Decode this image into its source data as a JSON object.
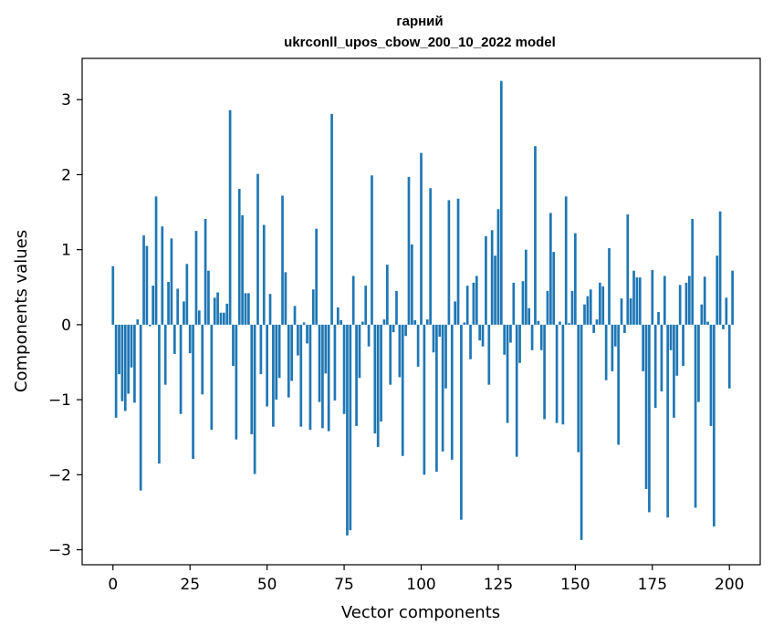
{
  "chart_data": {
    "type": "bar",
    "title": "гарний",
    "subtitle": "ukrconll_upos_cbow_200_10_2022 model",
    "xlabel": "Vector components",
    "ylabel": "Components values",
    "xlim": [
      -10,
      210
    ],
    "ylim": [
      -3.2,
      3.55
    ],
    "xticks": [
      0,
      25,
      50,
      75,
      100,
      125,
      150,
      175,
      200
    ],
    "yticks": [
      -3,
      -2,
      -1,
      0,
      1,
      2,
      3
    ],
    "xtick_labels": [
      "0",
      "25",
      "50",
      "75",
      "100",
      "125",
      "150",
      "175",
      "200"
    ],
    "ytick_labels": [
      "−3",
      "−2",
      "−1",
      "0",
      "1",
      "2",
      "3"
    ],
    "grid": false,
    "bar_color": "#1f77b4",
    "values": [
      0.78,
      -1.24,
      -0.66,
      -1.02,
      -1.15,
      -0.92,
      -0.57,
      -1.04,
      0.07,
      -2.21,
      1.19,
      1.05,
      -0.02,
      0.52,
      1.71,
      -1.85,
      1.31,
      -0.8,
      0.57,
      1.15,
      -0.39,
      0.48,
      -1.19,
      0.31,
      0.81,
      -0.38,
      -1.79,
      1.25,
      0.19,
      -0.93,
      1.41,
      0.72,
      -1.4,
      0.36,
      0.43,
      0.16,
      0.16,
      0.28,
      2.86,
      -0.55,
      -1.53,
      1.81,
      1.46,
      0.42,
      0.42,
      -1.46,
      -1.99,
      2.01,
      -0.66,
      1.33,
      -1.09,
      0.41,
      -1.36,
      -1.0,
      -0.71,
      1.72,
      0.7,
      -0.97,
      -0.75,
      0.25,
      -0.41,
      -1.36,
      0.03,
      -0.25,
      -1.4,
      0.47,
      1.28,
      -1.03,
      -1.38,
      -0.65,
      -1.42,
      2.81,
      -1.01,
      0.23,
      0.06,
      -1.19,
      -2.81,
      -2.74,
      0.65,
      -1.35,
      -0.71,
      0.04,
      0.52,
      -0.29,
      1.99,
      -1.45,
      -1.63,
      -1.29,
      0.07,
      0.8,
      -0.8,
      -0.1,
      0.45,
      -0.7,
      -1.75,
      -0.15,
      1.97,
      1.07,
      0.06,
      -0.56,
      2.29,
      -2.0,
      0.07,
      1.82,
      -0.37,
      -1.96,
      -0.16,
      -1.69,
      -0.85,
      1.66,
      -1.8,
      0.31,
      1.68,
      -2.6,
      0.03,
      0.52,
      -0.46,
      0.56,
      0.65,
      -0.21,
      -0.29,
      1.18,
      -0.8,
      1.26,
      0.92,
      1.54,
      3.25,
      -0.4,
      -1.31,
      -0.24,
      0.56,
      -1.76,
      -0.51,
      0.58,
      1.0,
      0.22,
      -0.34,
      2.38,
      0.05,
      -0.34,
      -1.26,
      0.45,
      1.49,
      0.97,
      -1.31,
      0.04,
      -1.33,
      1.71,
      0.02,
      0.45,
      1.22,
      -1.7,
      -2.87,
      0.27,
      0.38,
      0.47,
      -0.11,
      0.07,
      0.56,
      0.51,
      -0.74,
      1.02,
      -0.62,
      -0.29,
      -1.6,
      0.35,
      -0.11,
      1.47,
      0.35,
      0.72,
      0.63,
      0.63,
      -0.62,
      -2.19,
      -2.5,
      0.73,
      -1.11,
      0.17,
      -0.89,
      0.65,
      -2.57,
      -0.34,
      -1.24,
      -0.68,
      0.53,
      -0.55,
      0.56,
      0.65,
      1.41,
      -2.44,
      -1.03,
      0.27,
      0.64,
      0.04,
      -1.35,
      -2.69,
      0.92,
      1.51,
      -0.06,
      0.36,
      -0.85,
      0.72
    ]
  }
}
